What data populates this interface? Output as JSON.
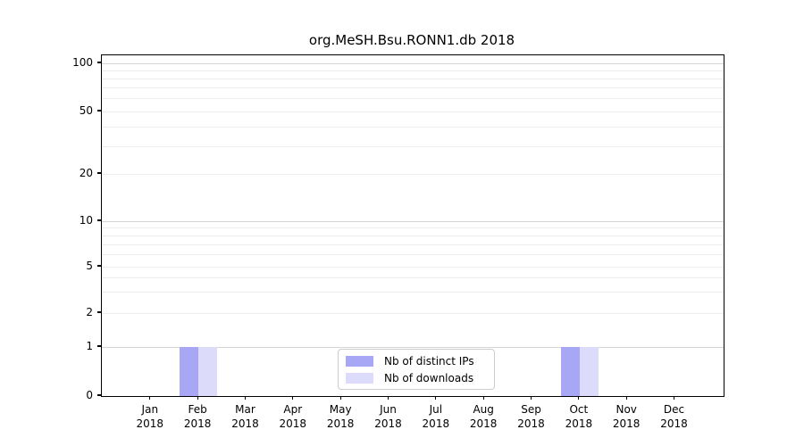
{
  "chart_data": {
    "type": "bar",
    "title": "org.MeSH.Bsu.RONN1.db 2018",
    "categories": [
      "Jan",
      "Feb",
      "Mar",
      "Apr",
      "May",
      "Jun",
      "Jul",
      "Aug",
      "Sep",
      "Oct",
      "Nov",
      "Dec"
    ],
    "year_label": "2018",
    "series": [
      {
        "name": "Nb of distinct IPs",
        "color": "#a7a7f6",
        "values": [
          0,
          1,
          0,
          0,
          0,
          0,
          0,
          0,
          0,
          1,
          0,
          0
        ]
      },
      {
        "name": "Nb of downloads",
        "color": "#dcdcfa",
        "values": [
          0,
          1,
          0,
          0,
          0,
          0,
          0,
          0,
          0,
          1,
          0,
          0
        ]
      }
    ],
    "yscale": "symlog",
    "ylim": [
      0,
      112
    ],
    "y_ticks": [
      0,
      1,
      2,
      5,
      10,
      20,
      50,
      100
    ],
    "y_major_gridlines": [
      1,
      10,
      100
    ],
    "y_minor_gridlines": [
      2,
      3,
      4,
      5,
      6,
      7,
      8,
      9,
      20,
      30,
      40,
      50,
      60,
      70,
      80,
      90
    ],
    "grid": "horizontal",
    "legend_position": "lower center inside",
    "colors": {
      "grid_major": "#d4d4d4",
      "grid_minor": "#ededed",
      "axis": "#000000",
      "background": "#ffffff"
    }
  }
}
